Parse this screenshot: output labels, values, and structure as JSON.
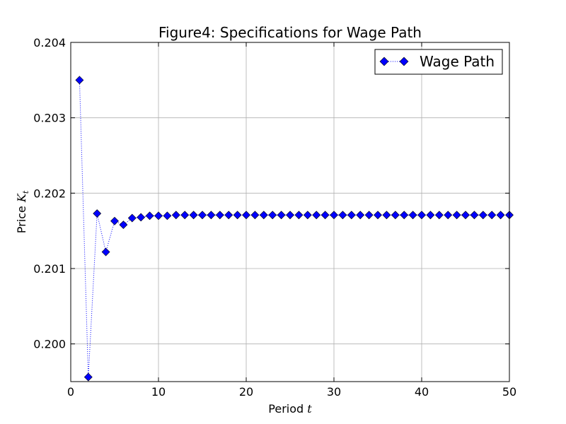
{
  "chart_data": {
    "type": "line",
    "title": "Figure4: Specifications for Wage Path",
    "xlabel": "Period",
    "xlabel_symbol": "t",
    "ylabel": "Price",
    "ylabel_symbol": "K",
    "ylabel_subscript": "t",
    "xlim": [
      0,
      50
    ],
    "ylim": [
      0.1995,
      0.204
    ],
    "xticks": [
      0,
      10,
      20,
      30,
      40,
      50
    ],
    "xtick_labels": [
      "0",
      "10",
      "20",
      "30",
      "40",
      "50"
    ],
    "yticks": [
      0.2,
      0.201,
      0.202,
      0.203,
      0.204
    ],
    "ytick_labels": [
      "0.200",
      "0.201",
      "0.202",
      "0.203",
      "0.204"
    ],
    "grid": true,
    "legend_position": "top-right",
    "series": [
      {
        "name": "Wage Path",
        "color": "#0000ff",
        "line_style": "dotted",
        "marker": "diamond",
        "x": [
          1,
          2,
          3,
          4,
          5,
          6,
          7,
          8,
          9,
          10,
          11,
          12,
          13,
          14,
          15,
          16,
          17,
          18,
          19,
          20,
          21,
          22,
          23,
          24,
          25,
          26,
          27,
          28,
          29,
          30,
          31,
          32,
          33,
          34,
          35,
          36,
          37,
          38,
          39,
          40,
          41,
          42,
          43,
          44,
          45,
          46,
          47,
          48,
          49,
          50
        ],
        "y": [
          0.2035,
          0.19956,
          0.20173,
          0.20122,
          0.20163,
          0.20158,
          0.20167,
          0.20168,
          0.2017,
          0.2017,
          0.2017,
          0.20171,
          0.20171,
          0.20171,
          0.20171,
          0.20171,
          0.20171,
          0.20171,
          0.20171,
          0.20171,
          0.20171,
          0.20171,
          0.20171,
          0.20171,
          0.20171,
          0.20171,
          0.20171,
          0.20171,
          0.20171,
          0.20171,
          0.20171,
          0.20171,
          0.20171,
          0.20171,
          0.20171,
          0.20171,
          0.20171,
          0.20171,
          0.20171,
          0.20171,
          0.20171,
          0.20171,
          0.20171,
          0.20171,
          0.20171,
          0.20171,
          0.20171,
          0.20171,
          0.20171,
          0.20171
        ]
      }
    ]
  }
}
